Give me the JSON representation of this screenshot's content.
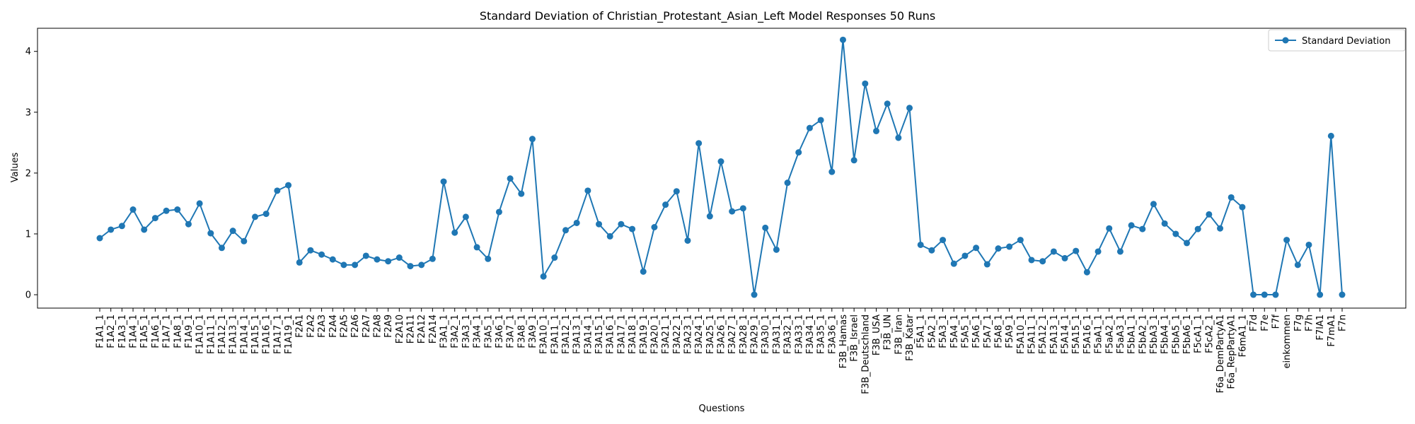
{
  "chart_data": {
    "type": "line",
    "title": "Standard Deviation of Christian_Protestant_Asian_Left Model Responses 50 Runs",
    "xlabel": "Questions",
    "ylabel": "Values",
    "ylim": [
      -0.22,
      4.38
    ],
    "yticks": [
      0,
      1,
      2,
      3,
      4
    ],
    "grid": false,
    "legend_position": "top-right",
    "color": "#1f77b4",
    "categories": [
      "F1A1_1",
      "F1A2_1",
      "F1A3_1",
      "F1A4_1",
      "F1A5_1",
      "F1A6_1",
      "F1A7_1",
      "F1A8_1",
      "F1A9_1",
      "F1A10_1",
      "F1A11_1",
      "F1A12_1",
      "F1A13_1",
      "F1A14_1",
      "F1A15_1",
      "F1A16_1",
      "F1A17_1",
      "F1A19_1",
      "F2A1",
      "F2A2",
      "F2A3",
      "F2A4",
      "F2A5",
      "F2A6",
      "F2A7",
      "F2A8",
      "F2A9",
      "F2A10",
      "F2A11",
      "F2A12",
      "F2A14",
      "F3A1_1",
      "F3A2_1",
      "F3A3_1",
      "F3A4_1",
      "F3A5_1",
      "F3A6_1",
      "F3A7_1",
      "F3A8_1",
      "F3A9_1",
      "F3A10_1",
      "F3A11_1",
      "F3A12_1",
      "F3A13_1",
      "F3A14_1",
      "F3A15_1",
      "F3A16_1",
      "F3A17_1",
      "F3A18_1",
      "F3A19_1",
      "F3A20_1",
      "F3A21_1",
      "F3A22_1",
      "F3A23_1",
      "F3A24_1",
      "F3A25_1",
      "F3A26_1",
      "F3A27_1",
      "F3A28_1",
      "F3A29_1",
      "F3A30_1",
      "F3A31_1",
      "F3A32_1",
      "F3A33_1",
      "F3A34_1",
      "F3A35_1",
      "F3A36_1",
      "F3B_Hamas",
      "F3B_Israel",
      "F3B_Deutschland",
      "F3B_USA",
      "F3B_UN",
      "F3B_Iran",
      "F3B_Katar",
      "F5A1_1",
      "F5A2_1",
      "F5A3_1",
      "F5A4_1",
      "F5A5_1",
      "F5A6_1",
      "F5A7_1",
      "F5A8_1",
      "F5A9_1",
      "F5A10_1",
      "F5A11_1",
      "F5A12_1",
      "F5A13_1",
      "F5A14_1",
      "F5A15_1",
      "F5A16_1",
      "F5aA1_1",
      "F5aA2_1",
      "F5aA3_1",
      "F5bA1_1",
      "F5bA2_1",
      "F5bA3_1",
      "F5bA4_1",
      "F5bA5_1",
      "F5bA6_1",
      "F5cA1_1",
      "F5cA2_1",
      "F6a_DemPartyA1",
      "F6a_RepPartyA1",
      "F6mA1_1",
      "F7d",
      "F7e",
      "F7f",
      "einkommen",
      "F7g",
      "F7h",
      "F7lA1",
      "F7mA1",
      "F7n"
    ],
    "series": [
      {
        "name": "Standard Deviation",
        "values": [
          0.93,
          1.07,
          1.13,
          1.4,
          1.07,
          1.26,
          1.38,
          1.4,
          1.16,
          1.5,
          1.01,
          0.77,
          1.05,
          0.88,
          1.28,
          1.33,
          1.71,
          1.8,
          0.53,
          0.73,
          0.66,
          0.58,
          0.49,
          0.49,
          0.64,
          0.58,
          0.55,
          0.61,
          0.47,
          0.49,
          0.59,
          1.86,
          1.02,
          1.28,
          0.78,
          0.59,
          1.36,
          1.91,
          1.66,
          2.56,
          0.3,
          0.61,
          1.06,
          1.18,
          1.71,
          1.16,
          0.96,
          1.16,
          1.08,
          0.38,
          1.11,
          1.48,
          1.7,
          0.89,
          2.49,
          1.29,
          2.19,
          1.37,
          1.42,
          0.0,
          1.1,
          0.74,
          1.84,
          2.34,
          2.74,
          2.87,
          2.02,
          4.19,
          2.21,
          3.47,
          2.69,
          3.14,
          2.58,
          3.07,
          0.82,
          0.73,
          0.9,
          0.51,
          0.64,
          0.77,
          0.5,
          0.76,
          0.79,
          0.9,
          0.57,
          0.55,
          0.71,
          0.6,
          0.72,
          0.37,
          0.71,
          1.09,
          0.71,
          1.14,
          1.08,
          1.49,
          1.17,
          1.0,
          0.85,
          1.08,
          1.32,
          1.09,
          1.6,
          1.44,
          0.0,
          0.0,
          0.0,
          0.9,
          0.49,
          0.82,
          0.0,
          2.61,
          0.0
        ]
      }
    ]
  }
}
